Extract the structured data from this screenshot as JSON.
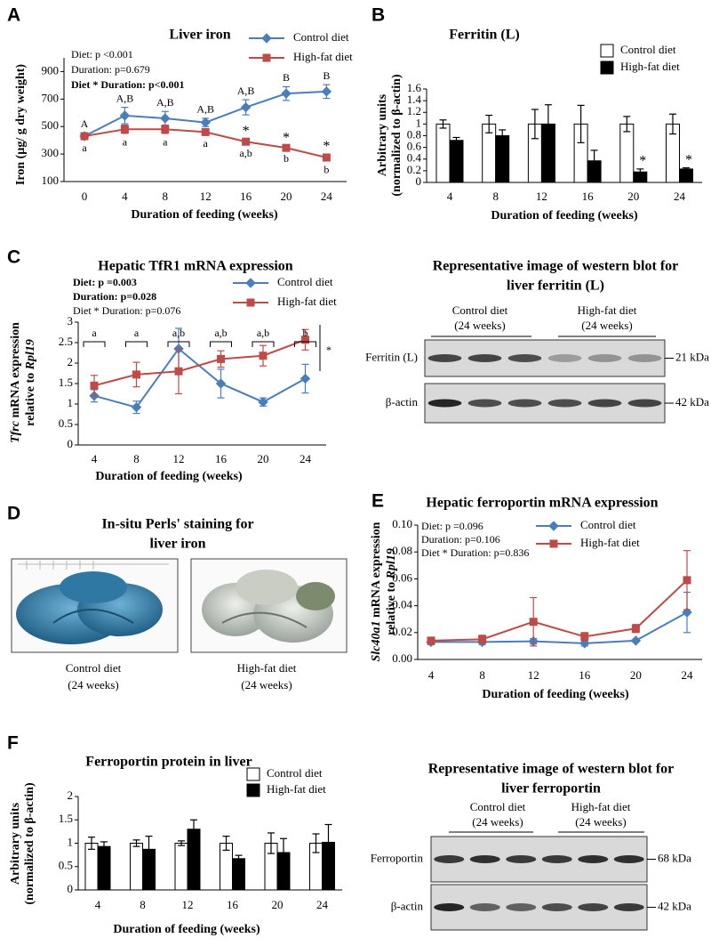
{
  "panel_labels": [
    "A",
    "B",
    "C",
    "D",
    "E",
    "F"
  ],
  "chart_data": [
    {
      "type": "line",
      "title": "Liver iron",
      "stats": [
        [
          {
            "text": "Diet: p <0.001"
          }
        ],
        [
          {
            "text": "Duration: p=0.679"
          }
        ],
        [
          {
            "text": "Diet * Duration: p<0.001",
            "bold": true
          }
        ]
      ],
      "categories": [
        "0",
        "4",
        "8",
        "12",
        "16",
        "20",
        "24"
      ],
      "xlabel": "Duration of feeding (weeks)",
      "ylabel": [
        [
          {
            "text": "Iron (µg/ g dry weight)"
          }
        ]
      ],
      "ylim": [
        100,
        1000
      ],
      "yticks": [
        100,
        300,
        500,
        700,
        900
      ],
      "series": [
        {
          "name": "Control diet",
          "color": "#4a7ebb",
          "marker": "diamond",
          "values": [
            430,
            580,
            560,
            530,
            640,
            740,
            755
          ],
          "errors": [
            25,
            60,
            50,
            30,
            55,
            50,
            50
          ],
          "labels_above": [
            "A",
            "A,B",
            "A,B",
            "A,B",
            "A,B",
            "B",
            "B"
          ]
        },
        {
          "name": "High-fat diet",
          "color": "#be4b48",
          "marker": "square",
          "values": [
            430,
            480,
            480,
            460,
            390,
            345,
            275
          ],
          "errors": [
            20,
            30,
            30,
            20,
            20,
            15,
            25
          ],
          "stars": [
            null,
            null,
            null,
            null,
            "*",
            "*",
            "*"
          ],
          "labels_below": [
            "a",
            "a",
            "a",
            "a",
            "a,b",
            "b",
            "b"
          ]
        }
      ]
    },
    {
      "type": "bar",
      "title": "Ferritin (L)",
      "categories": [
        "4",
        "8",
        "12",
        "16",
        "20",
        "24"
      ],
      "xlabel": "Duration of feeding (weeks)",
      "ylabel": [
        [
          {
            "text": "Arbitrary units"
          }
        ],
        [
          {
            "text": "(normalized to β-actin)"
          }
        ]
      ],
      "ylim": [
        0,
        1.6
      ],
      "yticks": [
        0,
        0.2,
        0.4,
        0.6,
        0.8,
        1,
        1.2,
        1.4,
        1.6
      ],
      "series": [
        {
          "name": "Control diet",
          "color": "#ffffff",
          "values": [
            1,
            1,
            1,
            1,
            1,
            1
          ],
          "errors": [
            0.07,
            0.15,
            0.25,
            0.32,
            0.13,
            0.17
          ]
        },
        {
          "name": "High-fat diet",
          "color": "#000000",
          "values": [
            0.72,
            0.8,
            1.0,
            0.37,
            0.18,
            0.23
          ],
          "errors": [
            0.05,
            0.1,
            0.33,
            0.18,
            0.05,
            0.02
          ],
          "stars": [
            null,
            null,
            null,
            null,
            "*",
            "*"
          ]
        }
      ]
    },
    {
      "type": "line",
      "title": "Hepatic TfR1 mRNA expression",
      "stats": [
        [
          {
            "text": "Diet: p =0.003",
            "bold": true
          }
        ],
        [
          {
            "text": "Duration: p=0.028",
            "bold": true
          }
        ],
        [
          {
            "text": "Diet * Duration: p=0.076"
          }
        ]
      ],
      "categories": [
        "4",
        "8",
        "12",
        "16",
        "20",
        "24"
      ],
      "xlabel": "Duration of feeding (weeks)",
      "ylabel": [
        [
          {
            "text": "Tfrc",
            "italic": true
          },
          {
            "text": " mRNA expression"
          }
        ],
        [
          {
            "text": "relative to "
          },
          {
            "text": "Rpl19",
            "italic": true
          }
        ]
      ],
      "ylim": [
        0,
        3
      ],
      "yticks": [
        0,
        0.5,
        1,
        1.5,
        2,
        2.5,
        3
      ],
      "brackets": [
        "a",
        "a",
        "a,b",
        "a,b",
        "a,b",
        "b"
      ],
      "significance": "*",
      "series": [
        {
          "name": "Control diet",
          "color": "#4a7ebb",
          "marker": "diamond",
          "values": [
            1.2,
            0.92,
            2.35,
            1.5,
            1.05,
            1.62
          ],
          "errors": [
            0.15,
            0.15,
            0.5,
            0.35,
            0.1,
            0.35
          ]
        },
        {
          "name": "High-fat diet",
          "color": "#be4b48",
          "marker": "square",
          "values": [
            1.45,
            1.72,
            1.8,
            2.1,
            2.18,
            2.57
          ],
          "errors": [
            0.25,
            0.3,
            0.55,
            0.2,
            0.25,
            0.25
          ]
        }
      ]
    },
    {
      "type": "line",
      "title": "Hepatic ferroportin mRNA expression",
      "stats": [
        [
          {
            "text": "Diet: p =0.096"
          }
        ],
        [
          {
            "text": "Duration: p=0.106"
          }
        ],
        [
          {
            "text": "Diet * Duration: p=0.836"
          }
        ]
      ],
      "categories": [
        "4",
        "8",
        "12",
        "16",
        "20",
        "24"
      ],
      "xlabel": "Duration of feeding (weeks)",
      "ylabel": [
        [
          {
            "text": "Slc40a1",
            "italic": true
          },
          {
            "text": " mRNA expression"
          }
        ],
        [
          {
            "text": "relative to "
          },
          {
            "text": "Rpl19",
            "italic": true
          }
        ]
      ],
      "ylim": [
        0,
        0.1
      ],
      "yticks": [
        {
          "value": 0,
          "label": "0.00"
        },
        {
          "value": 0.02,
          "label": "0.02"
        },
        {
          "value": 0.04,
          "label": "0.04"
        },
        {
          "value": 0.06,
          "label": "0.06"
        },
        {
          "value": 0.08,
          "label": "0.08"
        },
        {
          "value": 0.1,
          "label": "0.10"
        }
      ],
      "series": [
        {
          "name": "Control diet",
          "color": "#4a7ebb",
          "marker": "diamond",
          "values": [
            0.013,
            0.013,
            0.0135,
            0.012,
            0.014,
            0.035
          ],
          "errors": [
            0.002,
            0.002,
            0.002,
            0.002,
            0.001,
            0.015
          ]
        },
        {
          "name": "High-fat diet",
          "color": "#be4b48",
          "marker": "square",
          "values": [
            0.014,
            0.015,
            0.028,
            0.017,
            0.023,
            0.059
          ],
          "errors": [
            0.002,
            0.003,
            0.018,
            0.003,
            0.003,
            0.022
          ]
        }
      ]
    },
    {
      "type": "bar",
      "title": "Ferroportin protein in liver",
      "categories": [
        "4",
        "8",
        "12",
        "16",
        "20",
        "24"
      ],
      "xlabel": "Duration of feeding (weeks)",
      "ylabel": [
        [
          {
            "text": "Arbitrary units"
          }
        ],
        [
          {
            "text": "(normalized to β-actin)"
          }
        ]
      ],
      "ylim": [
        0,
        2
      ],
      "yticks": [
        0,
        0.5,
        1,
        1.5,
        2
      ],
      "series": [
        {
          "name": "Control diet",
          "color": "#ffffff",
          "values": [
            1,
            1,
            1,
            1,
            1,
            1
          ],
          "errors": [
            0.13,
            0.07,
            0.05,
            0.15,
            0.22,
            0.2
          ]
        },
        {
          "name": "High-fat diet",
          "color": "#000000",
          "values": [
            0.93,
            0.87,
            1.3,
            0.67,
            0.8,
            1.02
          ],
          "errors": [
            0.1,
            0.28,
            0.2,
            0.07,
            0.3,
            0.38
          ]
        }
      ]
    }
  ],
  "blots": [
    {
      "title": [
        "Representative image of western blot for",
        "liver ferritin (L)"
      ],
      "groups": [
        [
          "Control diet",
          "(24 weeks)"
        ],
        [
          "High-fat diet",
          "(24 weeks)"
        ]
      ],
      "rows": [
        {
          "name": "Ferritin (L)",
          "size": "21 kDa"
        },
        {
          "name": "β-actin",
          "size": "42 kDa"
        }
      ]
    },
    {
      "title": [
        "Representative image of western blot for",
        "liver ferroportin"
      ],
      "groups": [
        [
          "Control diet",
          "(24 weeks)"
        ],
        [
          "High-fat diet",
          "(24 weeks)"
        ]
      ],
      "rows": [
        {
          "name": "Ferroportin",
          "size": "68 kDa"
        },
        {
          "name": "β-actin",
          "size": "42 kDa"
        }
      ]
    }
  ],
  "staining": {
    "title": [
      "In-situ Perls' staining for",
      "liver iron"
    ],
    "captions": [
      [
        "Control diet",
        "(24 weeks)"
      ],
      [
        "High-fat diet",
        "(24 weeks)"
      ]
    ]
  }
}
